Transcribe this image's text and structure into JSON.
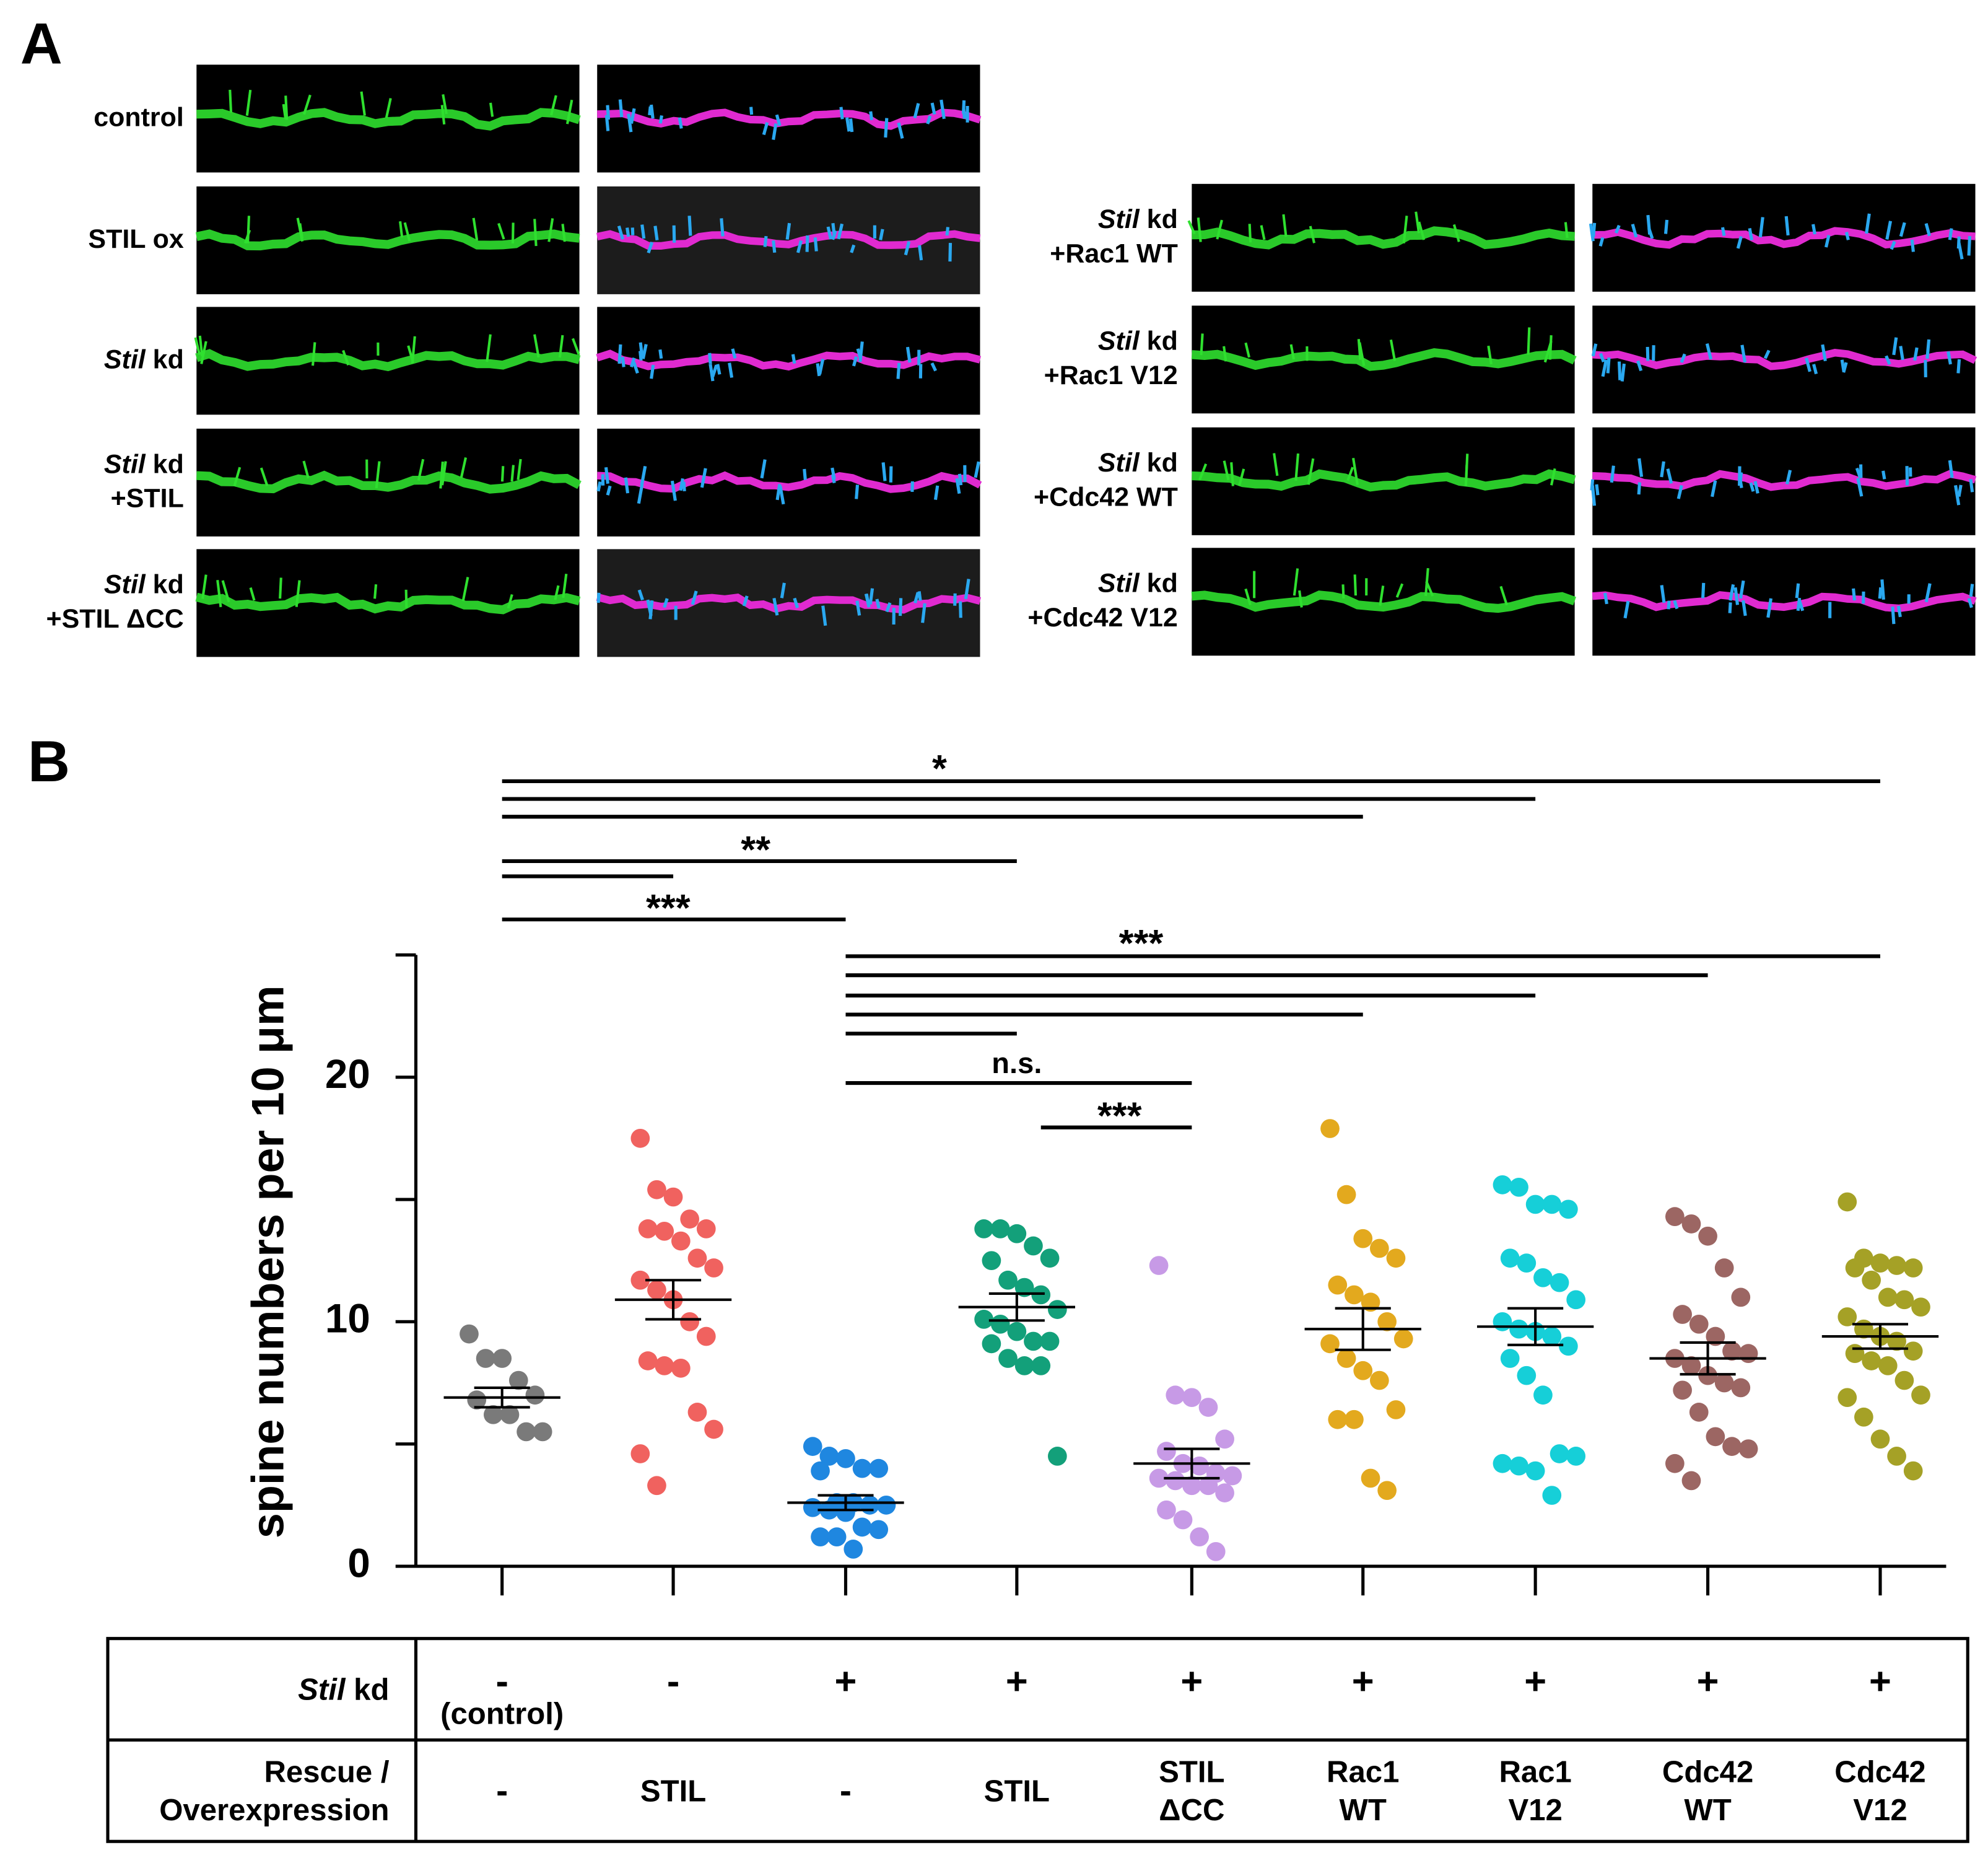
{
  "panel_a": {
    "letter": "A",
    "left": [
      [
        [
          {
            "t": "control"
          }
        ]
      ],
      [
        [
          {
            "t": "STIL ox"
          }
        ]
      ],
      [
        [
          {
            "t": "Stil",
            "i": true
          },
          {
            "t": " kd"
          }
        ]
      ],
      [
        [
          {
            "t": "Stil",
            "i": true
          },
          {
            "t": " kd"
          }
        ],
        [
          {
            "t": "+STIL"
          }
        ]
      ],
      [
        [
          {
            "t": "Stil",
            "i": true
          },
          {
            "t": " kd"
          }
        ],
        [
          {
            "t": "+STIL ΔCC"
          }
        ]
      ]
    ],
    "right": [
      [
        [
          {
            "t": "Stil",
            "i": true
          },
          {
            "t": " kd"
          }
        ],
        [
          {
            "t": "+Rac1 WT"
          }
        ]
      ],
      [
        [
          {
            "t": "Stil",
            "i": true
          },
          {
            "t": " kd"
          }
        ],
        [
          {
            "t": "+Rac1 V12"
          }
        ]
      ],
      [
        [
          {
            "t": "Stil",
            "i": true
          },
          {
            "t": " kd"
          }
        ],
        [
          {
            "t": "+Cdc42 WT"
          }
        ]
      ],
      [
        [
          {
            "t": "Stil",
            "i": true
          },
          {
            "t": " kd"
          }
        ],
        [
          {
            "t": "+Cdc42 V12"
          }
        ]
      ]
    ]
  },
  "chart_data": {
    "type": "dot",
    "letter": "B",
    "y_label": "spine numbers per 10 μm",
    "ylim": [
      0,
      25
    ],
    "yticks": [
      0,
      10,
      20
    ],
    "minor_yticks": [
      5,
      15,
      25
    ],
    "series": [
      {
        "color": "#7a7a7a",
        "values": [
          9.5,
          8.5,
          8.5,
          7.6,
          7.0,
          6.8,
          6.2,
          6.2,
          5.5,
          5.5
        ],
        "mean": 6.9,
        "sem": 0.4
      },
      {
        "color": "#f0625f",
        "values": [
          17.5,
          15.4,
          15.1,
          14.2,
          13.8,
          13.8,
          13.7,
          13.3,
          12.6,
          12.2,
          11.7,
          11.3,
          10.9,
          10.0,
          9.4,
          8.4,
          8.2,
          8.1,
          6.3,
          5.6,
          4.6,
          3.3
        ],
        "mean": 10.9,
        "sem": 0.8
      },
      {
        "color": "#1f87e0",
        "values": [
          4.9,
          4.5,
          4.4,
          4.0,
          4.0,
          3.9,
          2.6,
          2.6,
          2.5,
          2.5,
          2.4,
          2.3,
          2.2,
          1.6,
          1.5,
          1.2,
          1.2,
          0.7
        ],
        "mean": 2.6,
        "sem": 0.3
      },
      {
        "color": "#13a07a",
        "values": [
          13.8,
          13.8,
          13.6,
          13.1,
          12.6,
          12.5,
          11.7,
          11.4,
          11.1,
          10.5,
          10.1,
          9.9,
          9.6,
          9.2,
          9.2,
          9.1,
          8.5,
          8.2,
          8.2,
          4.5
        ],
        "mean": 10.6,
        "sem": 0.55
      },
      {
        "color": "#c79ae6",
        "values": [
          12.3,
          7.0,
          6.9,
          6.5,
          5.2,
          4.7,
          4.2,
          4.1,
          3.8,
          3.7,
          3.6,
          3.5,
          3.3,
          3.3,
          3.0,
          2.3,
          1.9,
          1.2,
          0.6
        ],
        "mean": 4.2,
        "sem": 0.6
      },
      {
        "color": "#e3a91e",
        "values": [
          17.9,
          15.2,
          13.4,
          13.0,
          12.6,
          11.5,
          11.1,
          10.8,
          10.0,
          9.3,
          9.1,
          8.5,
          8.0,
          7.6,
          6.4,
          6.0,
          6.0,
          3.6,
          3.1
        ],
        "mean": 9.7,
        "sem": 0.85
      },
      {
        "color": "#16cfd8",
        "values": [
          15.6,
          15.5,
          14.8,
          14.8,
          14.6,
          12.6,
          12.4,
          11.8,
          11.6,
          10.9,
          10.0,
          9.7,
          9.6,
          9.4,
          9.0,
          8.5,
          7.8,
          7.0,
          4.6,
          4.5,
          4.2,
          4.1,
          3.9,
          2.9
        ],
        "mean": 9.8,
        "sem": 0.75
      },
      {
        "color": "#9c6663",
        "values": [
          14.3,
          14.0,
          13.5,
          12.2,
          11.0,
          10.3,
          9.9,
          9.4,
          8.8,
          8.7,
          8.5,
          8.2,
          7.8,
          7.5,
          7.3,
          7.2,
          6.3,
          5.3,
          4.9,
          4.8,
          4.2,
          3.5
        ],
        "mean": 8.5,
        "sem": 0.65
      },
      {
        "color": "#a5a126",
        "values": [
          14.9,
          12.6,
          12.4,
          12.3,
          12.2,
          12.2,
          11.7,
          11.0,
          10.9,
          10.6,
          10.2,
          9.7,
          9.4,
          9.2,
          8.8,
          8.7,
          8.4,
          8.2,
          7.6,
          7.0,
          6.9,
          6.1,
          5.2,
          4.5,
          3.9
        ],
        "mean": 9.4,
        "sem": 0.5
      }
    ],
    "significance": [
      {
        "label": "*",
        "pairs": [
          [
            0,
            8
          ],
          [
            0,
            6
          ],
          [
            0,
            5
          ]
        ]
      },
      {
        "label": "**",
        "pairs": [
          [
            0,
            3
          ],
          [
            0,
            1
          ]
        ]
      },
      {
        "label": "***",
        "pairs": [
          [
            0,
            2
          ]
        ]
      },
      {
        "label": "***",
        "pairs": [
          [
            2,
            8
          ],
          [
            2,
            7
          ],
          [
            2,
            6
          ],
          [
            2,
            5
          ],
          [
            2,
            3
          ]
        ]
      },
      {
        "label": "n.s.",
        "pairs": [
          [
            2,
            4
          ]
        ]
      },
      {
        "label": "***",
        "pairs": [
          [
            3,
            4
          ]
        ]
      }
    ]
  },
  "table": {
    "rows": [
      {
        "header": [
          [
            {
              "t": "Stil",
              "i": true
            },
            {
              "t": " kd"
            }
          ]
        ],
        "cells": [
          [
            "-",
            "(control)"
          ],
          [
            "-"
          ],
          [
            "+"
          ],
          [
            "+"
          ],
          [
            "+"
          ],
          [
            "+"
          ],
          [
            "+"
          ],
          [
            "+"
          ],
          [
            "+"
          ]
        ]
      },
      {
        "header": [
          [
            {
              "t": "Rescue /"
            }
          ],
          [
            {
              "t": "Overexpression"
            }
          ]
        ],
        "cells": [
          [
            "-"
          ],
          [
            "STIL"
          ],
          [
            "-"
          ],
          [
            "STIL"
          ],
          [
            "STIL",
            "ΔCC"
          ],
          [
            "Rac1",
            "WT"
          ],
          [
            "Rac1",
            "V12"
          ],
          [
            "Cdc42",
            "WT"
          ],
          [
            "Cdc42",
            "V12"
          ]
        ]
      }
    ]
  }
}
